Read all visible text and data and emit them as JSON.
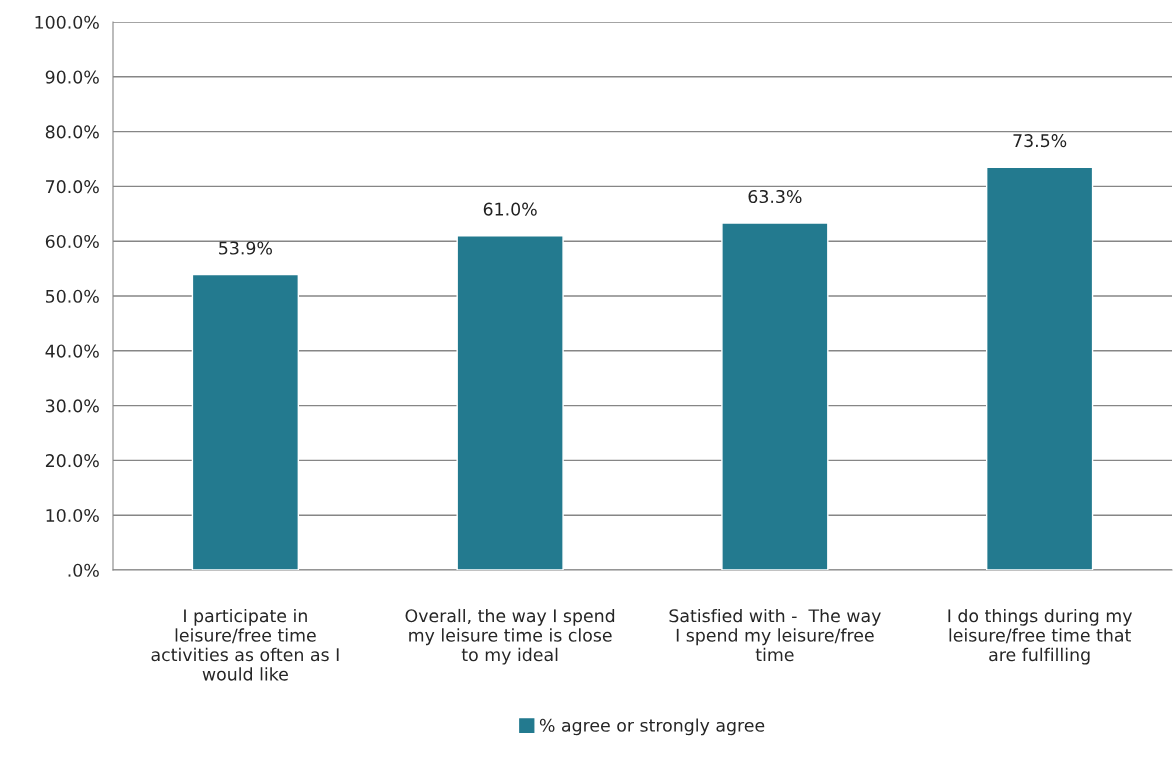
{
  "chart_data": {
    "type": "bar",
    "categories": [
      "I participate in\nleisure/free time\nactivities as often as I\nwould like",
      "Overall, the way I spend\nmy leisure time is close\nto my ideal",
      "Satisfied with -  The way\nI spend my leisure/free\ntime",
      "I do things during my\nleisure/free time that\nare fulfilling"
    ],
    "series": [
      {
        "name": "% agree or strongly agree",
        "color": "#237a8f",
        "values": [
          53.9,
          61.0,
          63.3,
          73.5
        ],
        "value_labels": [
          "53.9%",
          "61.0%",
          "63.3%",
          "73.5%"
        ]
      }
    ],
    "ylim": [
      0,
      100
    ],
    "yticks": [
      {
        "value": 0,
        "label": ".0%"
      },
      {
        "value": 10,
        "label": "10.0%"
      },
      {
        "value": 20,
        "label": "20.0%"
      },
      {
        "value": 30,
        "label": "30.0%"
      },
      {
        "value": 40,
        "label": "40.0%"
      },
      {
        "value": 50,
        "label": "50.0%"
      },
      {
        "value": 60,
        "label": "60.0%"
      },
      {
        "value": 70,
        "label": "70.0%"
      },
      {
        "value": 80,
        "label": "80.0%"
      },
      {
        "value": 90,
        "label": "90.0%"
      },
      {
        "value": 100,
        "label": "100.0%"
      }
    ],
    "grid": "y",
    "legend": "bottom"
  }
}
